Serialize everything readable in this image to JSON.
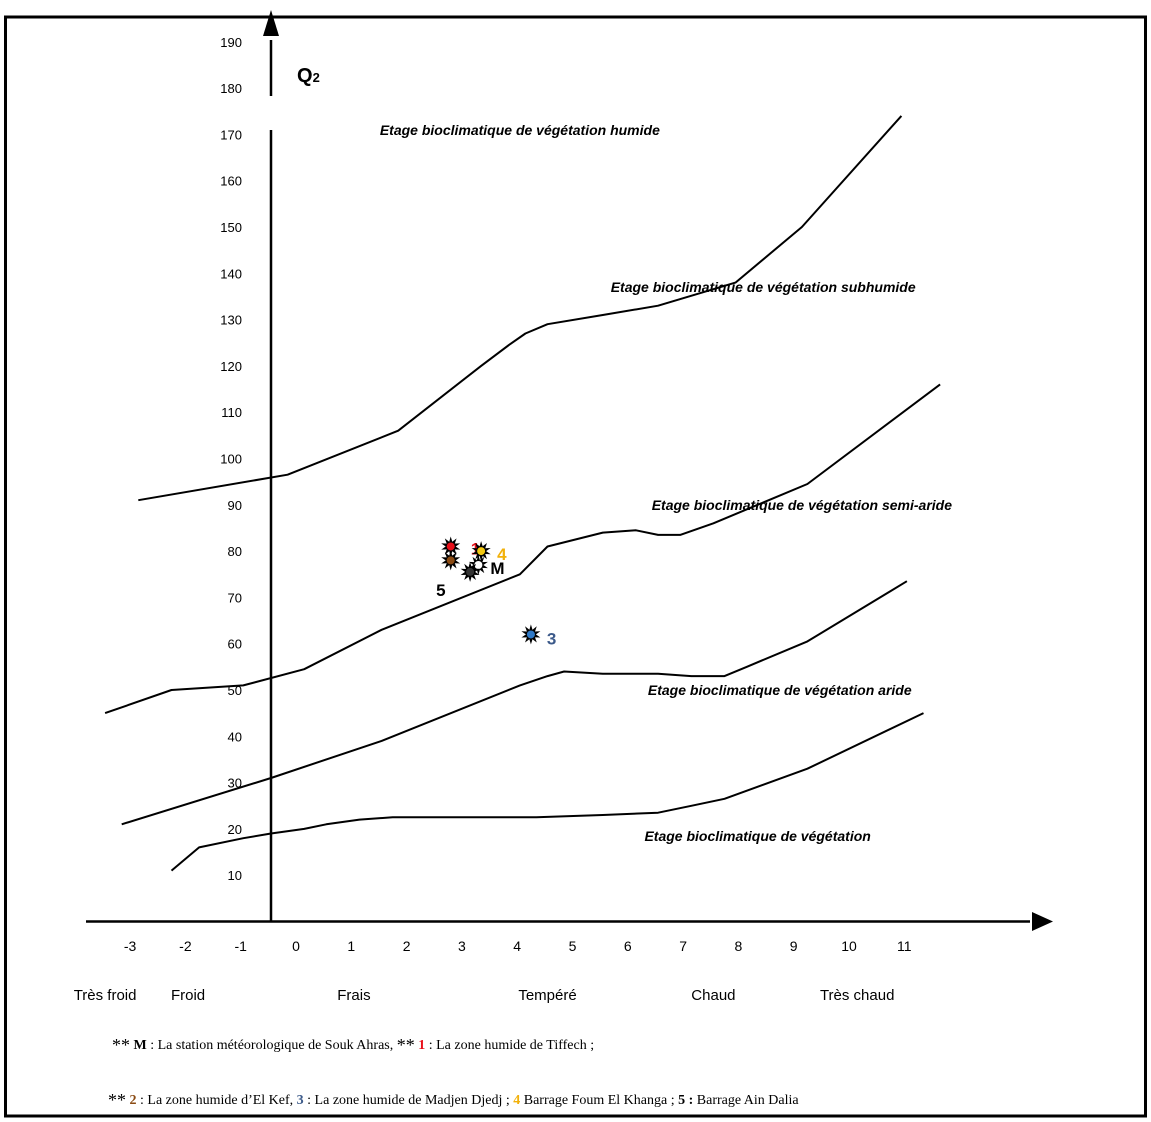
{
  "chart_data": {
    "type": "line",
    "y_axis_label_base": "Q",
    "y_axis_label_sub": "2",
    "yticks": [
      10,
      20,
      30,
      40,
      50,
      60,
      70,
      80,
      90,
      100,
      110,
      120,
      130,
      140,
      150,
      160,
      170,
      180,
      190
    ],
    "xticks": [
      -3,
      -2,
      -1,
      0,
      1,
      2,
      3,
      4,
      5,
      6,
      7,
      8,
      9,
      10,
      11
    ],
    "xlim": [
      -3.5,
      12.5
    ],
    "ylim": [
      0,
      195
    ],
    "temperature_classes": [
      {
        "label": "Très froid",
        "x": -3
      },
      {
        "label": "Froid",
        "x": -1.5
      },
      {
        "label": "Frais",
        "x": 1.5
      },
      {
        "label": "Tempéré",
        "x": 5
      },
      {
        "label": "Chaud",
        "x": 8
      },
      {
        "label": "Très chaud",
        "x": 10.6
      }
    ],
    "boundaries": [
      {
        "points": [
          [
            -1.8,
            11
          ],
          [
            -1.3,
            16
          ],
          [
            -0.5,
            18
          ],
          [
            0,
            19
          ],
          [
            0.6,
            20
          ],
          [
            1,
            21
          ],
          [
            1.6,
            22
          ],
          [
            2.2,
            22.5
          ],
          [
            3.6,
            22.5
          ],
          [
            4.8,
            22.5
          ],
          [
            6,
            23
          ],
          [
            7,
            23.5
          ],
          [
            7.6,
            25
          ],
          [
            8.2,
            26.5
          ],
          [
            9.7,
            33
          ],
          [
            11.8,
            45
          ]
        ]
      },
      {
        "points": [
          [
            -2.7,
            21
          ],
          [
            0,
            31
          ],
          [
            2,
            39
          ],
          [
            4.5,
            51
          ],
          [
            5,
            53
          ],
          [
            5.3,
            54
          ],
          [
            6,
            53.5
          ],
          [
            7,
            53.5
          ],
          [
            7.6,
            53
          ],
          [
            8.2,
            53
          ],
          [
            8.6,
            55
          ],
          [
            9.7,
            60.5
          ],
          [
            11.5,
            73.5
          ]
        ]
      },
      {
        "points": [
          [
            -3,
            45
          ],
          [
            -1.8,
            50
          ],
          [
            -0.5,
            51
          ],
          [
            0.6,
            54.5
          ],
          [
            2,
            63
          ],
          [
            4.5,
            75
          ],
          [
            5,
            81
          ],
          [
            6,
            84
          ],
          [
            6.6,
            84.5
          ],
          [
            7,
            83.5
          ],
          [
            7.4,
            83.5
          ],
          [
            8,
            86
          ],
          [
            9.7,
            94.5
          ],
          [
            12.1,
            116
          ]
        ]
      },
      {
        "points": [
          [
            -2.4,
            91
          ],
          [
            0.3,
            96.5
          ],
          [
            2.3,
            106
          ],
          [
            3.8,
            120
          ],
          [
            4.3,
            124.5
          ],
          [
            4.6,
            127
          ],
          [
            5,
            129
          ],
          [
            6,
            131
          ],
          [
            7,
            133
          ],
          [
            8.4,
            138
          ],
          [
            9.6,
            150
          ],
          [
            11.4,
            174
          ]
        ]
      }
    ],
    "zone_labels": [
      {
        "text": "Etage bioclimatique de végétation humide",
        "x": 4.5,
        "y": 171
      },
      {
        "text": "Etage bioclimatique de végétation subhumide",
        "x": 8.9,
        "y": 137
      },
      {
        "text": "Etage bioclimatique de végétation semi-aride",
        "x": 9.6,
        "y": 90
      },
      {
        "text": "Etage bioclimatique de végétation aride",
        "x": 9.2,
        "y": 50
      },
      {
        "text": "Etage bioclimatique de végétation",
        "x": 8.8,
        "y": 18.5
      }
    ],
    "stations": [
      {
        "id": "1",
        "x": 3.25,
        "y": 81,
        "label": "1",
        "color": "#e8101a",
        "label_color": "#e8101a",
        "label_dx": 20,
        "label_dy": 2
      },
      {
        "id": "2",
        "x": 3.25,
        "y": 78,
        "label": "",
        "color": "#8a4a12",
        "label_color": "#8a4a12",
        "label_dx": 0,
        "label_dy": 0
      },
      {
        "id": "4",
        "x": 3.8,
        "y": 80,
        "label": "4",
        "color": "#f2c811",
        "label_color": "#f2b10a",
        "label_dx": 16,
        "label_dy": 3
      },
      {
        "id": "M",
        "x": 3.75,
        "y": 77,
        "label": "M",
        "color": "#ffffff",
        "label_color": "#000000",
        "label_dx": 12,
        "label_dy": 3
      },
      {
        "id": "5",
        "x": 3.6,
        "y": 75.5,
        "label": "5",
        "color": "#333333",
        "label_color": "#000000",
        "label_dx": -34,
        "label_dy": 18
      },
      {
        "id": "3",
        "x": 4.7,
        "y": 62,
        "label": "3",
        "color": "#2f79c7",
        "label_color": "#3c5a8a",
        "label_dx": 16,
        "label_dy": 4
      }
    ]
  },
  "legend": {
    "line1": {
      "prefix": "**",
      "items": [
        {
          "key": "M",
          "key_color": "#000000",
          "text": " : La station météorologique de Souk Ahras, "
        },
        {
          "stars": "**"
        },
        {
          "key": "1",
          "key_color": "#e8101a",
          "text": " : La zone humide de Tiffech ;"
        }
      ]
    },
    "line2": {
      "prefix": "**",
      "items": [
        {
          "key": "2",
          "key_color": "#8a4a12",
          "text": " : La zone humide d’El Kef, "
        },
        {
          "key": "3",
          "key_color": "#3c5a8a",
          "text": " : La zone humide de Madjen Djedj ; "
        },
        {
          "key": "4",
          "key_color": "#f2b10a",
          "text": " Barrage Foum El Khanga ; "
        },
        {
          "key": "5 :",
          "key_color": "#000000",
          "text": " Barrage Ain Dalia"
        }
      ]
    }
  }
}
